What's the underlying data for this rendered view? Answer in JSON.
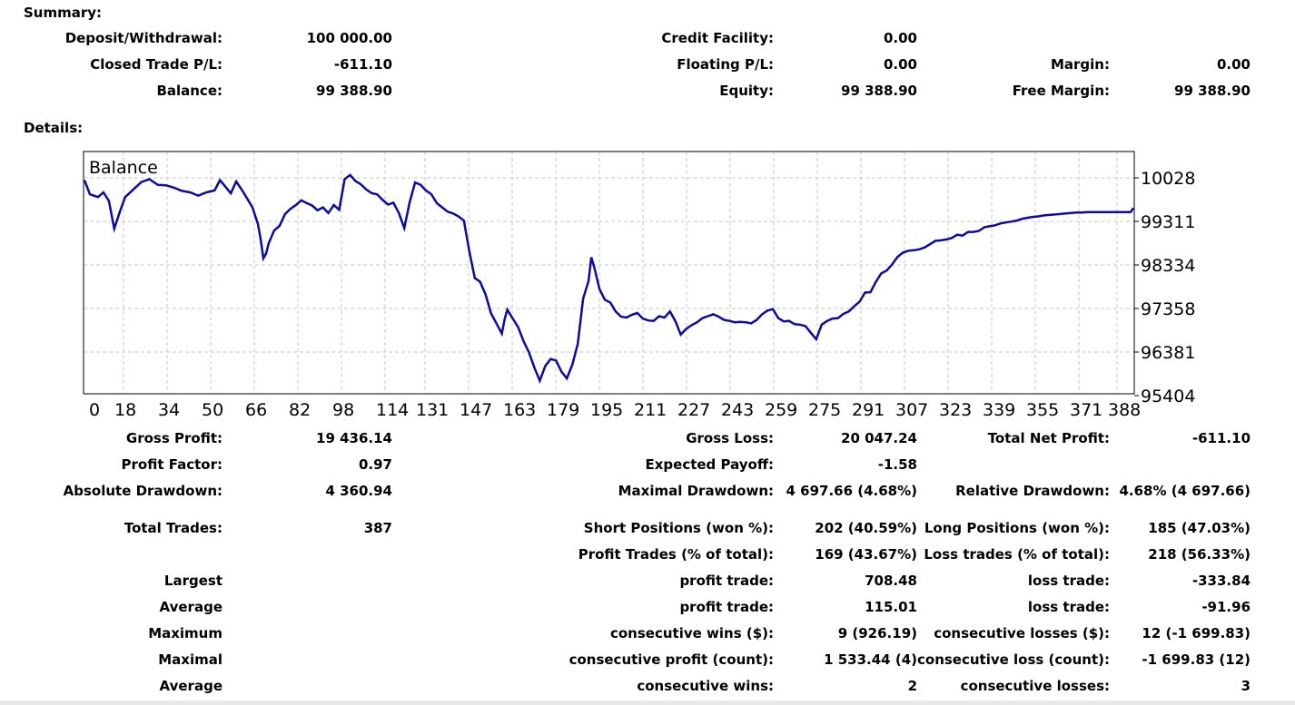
{
  "summary": {
    "heading": "Summary:",
    "deposit_label": "Deposit/Withdrawal:",
    "deposit_value": "100 000.00",
    "credit_label": "Credit Facility:",
    "credit_value": "0.00",
    "closed_pl_label": "Closed Trade P/L:",
    "closed_pl_value": "-611.10",
    "floating_pl_label": "Floating P/L:",
    "floating_pl_value": "0.00",
    "margin_label": "Margin:",
    "margin_value": "0.00",
    "balance_label": "Balance:",
    "balance_value": "99 388.90",
    "equity_label": "Equity:",
    "equity_value": "99 388.90",
    "free_margin_label": "Free Margin:",
    "free_margin_value": "99 388.90"
  },
  "details": {
    "heading": "Details:",
    "gross_profit_label": "Gross Profit:",
    "gross_profit_value": "19 436.14",
    "gross_loss_label": "Gross Loss:",
    "gross_loss_value": "20 047.24",
    "total_net_label": "Total Net Profit:",
    "total_net_value": "-611.10",
    "profit_factor_label": "Profit Factor:",
    "profit_factor_value": "0.97",
    "expected_payoff_label": "Expected Payoff:",
    "expected_payoff_value": "-1.58",
    "abs_dd_label": "Absolute Drawdown:",
    "abs_dd_value": "4 360.94",
    "max_dd_label": "Maximal Drawdown:",
    "max_dd_value": "4 697.66 (4.68%)",
    "rel_dd_label": "Relative Drawdown:",
    "rel_dd_value": "4.68% (4 697.66)",
    "total_trades_label": "Total Trades:",
    "total_trades_value": "387",
    "short_label": "Short Positions (won %):",
    "short_value": "202 (40.59%)",
    "long_label": "Long Positions (won %):",
    "long_value": "185 (47.03%)",
    "profit_trades_label": "Profit Trades (% of total):",
    "profit_trades_value": "169 (43.67%)",
    "loss_trades_label": "Loss trades (% of total):",
    "loss_trades_value": "218 (56.33%)",
    "largest_label": "Largest",
    "largest_profit_label": "profit trade:",
    "largest_profit_value": "708.48",
    "largest_loss_label": "loss trade:",
    "largest_loss_value": "-333.84",
    "average_label": "Average",
    "average_profit_label": "profit trade:",
    "average_profit_value": "115.01",
    "average_loss_label": "loss trade:",
    "average_loss_value": "-91.96",
    "maximum_label": "Maximum",
    "max_cons_wins_label": "consecutive wins ($):",
    "max_cons_wins_value": "9 (926.19)",
    "max_cons_losses_label": "consecutive losses ($):",
    "max_cons_losses_value": "12 (-1 699.83)",
    "maximal_label": "Maximal",
    "maximal_profit_label": "consecutive profit (count):",
    "maximal_profit_value": "1 533.44 (4)",
    "maximal_loss_label": "consecutive loss (count):",
    "maximal_loss_value": "-1 699.83 (12)",
    "average2_label": "Average",
    "avg_cons_wins_label": "consecutive wins:",
    "avg_cons_wins_value": "2",
    "avg_cons_losses_label": "consecutive losses:",
    "avg_cons_losses_value": "3"
  },
  "colors": {
    "line": "#0b0b9e",
    "grid": "#c8c8c8",
    "frame": "#000000"
  },
  "chart_data": {
    "type": "line",
    "title": "Balance",
    "xlabel": "",
    "ylabel": "",
    "x_ticks": [
      "0",
      "18",
      "34",
      "50",
      "66",
      "82",
      "98",
      "114",
      "131",
      "147",
      "163",
      "179",
      "195",
      "211",
      "227",
      "243",
      "259",
      "275",
      "291",
      "307",
      "323",
      "339",
      "355",
      "371",
      "388"
    ],
    "y_ticks": [
      "10028",
      "99311",
      "98334",
      "97358",
      "96381",
      "95404"
    ],
    "grid": true,
    "series": [
      {
        "points": [
          [
            0,
            99980
          ],
          [
            2,
            99680
          ],
          [
            5,
            99620
          ],
          [
            7,
            99720
          ],
          [
            9,
            99540
          ],
          [
            11,
            98950
          ],
          [
            13,
            99300
          ],
          [
            15,
            99620
          ],
          [
            18,
            99780
          ],
          [
            21,
            99940
          ],
          [
            24,
            100000
          ],
          [
            27,
            99880
          ],
          [
            30,
            99870
          ],
          [
            33,
            99820
          ],
          [
            36,
            99750
          ],
          [
            39,
            99720
          ],
          [
            42,
            99650
          ],
          [
            45,
            99720
          ],
          [
            48,
            99760
          ],
          [
            50,
            99980
          ],
          [
            52,
            99840
          ],
          [
            54,
            99700
          ],
          [
            56,
            99950
          ],
          [
            58,
            99780
          ],
          [
            60,
            99590
          ],
          [
            62,
            99400
          ],
          [
            64,
            99050
          ],
          [
            65,
            98730
          ],
          [
            66,
            98320
          ],
          [
            67,
            98420
          ],
          [
            68,
            98640
          ],
          [
            70,
            98910
          ],
          [
            72,
            99010
          ],
          [
            74,
            99260
          ],
          [
            76,
            99370
          ],
          [
            78,
            99450
          ],
          [
            80,
            99550
          ],
          [
            82,
            99490
          ],
          [
            84,
            99440
          ],
          [
            86,
            99340
          ],
          [
            88,
            99400
          ],
          [
            90,
            99280
          ],
          [
            92,
            99450
          ],
          [
            94,
            99350
          ],
          [
            96,
            100000
          ],
          [
            98,
            100090
          ],
          [
            100,
            99960
          ],
          [
            102,
            99890
          ],
          [
            104,
            99780
          ],
          [
            106,
            99700
          ],
          [
            108,
            99680
          ],
          [
            110,
            99560
          ],
          [
            112,
            99460
          ],
          [
            114,
            99500
          ],
          [
            116,
            99280
          ],
          [
            118,
            98960
          ],
          [
            120,
            99510
          ],
          [
            122,
            99930
          ],
          [
            124,
            99880
          ],
          [
            126,
            99760
          ],
          [
            128,
            99680
          ],
          [
            130,
            99490
          ],
          [
            132,
            99400
          ],
          [
            134,
            99310
          ],
          [
            136,
            99270
          ],
          [
            138,
            99210
          ],
          [
            140,
            99120
          ],
          [
            142,
            98470
          ],
          [
            144,
            97900
          ],
          [
            146,
            97820
          ],
          [
            148,
            97550
          ],
          [
            150,
            97150
          ],
          [
            152,
            96940
          ],
          [
            154,
            96720
          ],
          [
            155,
            97020
          ],
          [
            156,
            97230
          ],
          [
            158,
            97040
          ],
          [
            160,
            96860
          ],
          [
            162,
            96560
          ],
          [
            164,
            96320
          ],
          [
            166,
            96000
          ],
          [
            168,
            95720
          ],
          [
            170,
            96030
          ],
          [
            172,
            96180
          ],
          [
            174,
            96150
          ],
          [
            176,
            95910
          ],
          [
            178,
            95770
          ],
          [
            180,
            96060
          ],
          [
            182,
            96500
          ],
          [
            184,
            97460
          ],
          [
            186,
            97840
          ],
          [
            187,
            98340
          ],
          [
            188,
            98150
          ],
          [
            190,
            97670
          ],
          [
            192,
            97440
          ],
          [
            194,
            97380
          ],
          [
            196,
            97190
          ],
          [
            198,
            97080
          ],
          [
            200,
            97060
          ],
          [
            202,
            97120
          ],
          [
            204,
            97160
          ],
          [
            206,
            97040
          ],
          [
            208,
            97000
          ],
          [
            210,
            96990
          ],
          [
            212,
            97090
          ],
          [
            214,
            97060
          ],
          [
            216,
            97190
          ],
          [
            218,
            96990
          ],
          [
            220,
            96700
          ],
          [
            222,
            96820
          ],
          [
            224,
            96900
          ],
          [
            226,
            96960
          ],
          [
            228,
            97050
          ],
          [
            230,
            97090
          ],
          [
            232,
            97130
          ],
          [
            234,
            97080
          ],
          [
            236,
            97010
          ],
          [
            238,
            96990
          ],
          [
            240,
            96960
          ],
          [
            242,
            96970
          ],
          [
            244,
            96960
          ],
          [
            246,
            96940
          ],
          [
            248,
            97010
          ],
          [
            250,
            97130
          ],
          [
            252,
            97210
          ],
          [
            254,
            97240
          ],
          [
            256,
            97050
          ],
          [
            258,
            96980
          ],
          [
            260,
            96990
          ],
          [
            262,
            96920
          ],
          [
            264,
            96910
          ],
          [
            266,
            96880
          ],
          [
            268,
            96740
          ],
          [
            270,
            96600
          ],
          [
            272,
            96910
          ],
          [
            274,
            96990
          ],
          [
            276,
            97040
          ],
          [
            278,
            97050
          ],
          [
            280,
            97140
          ],
          [
            282,
            97190
          ],
          [
            284,
            97300
          ],
          [
            286,
            97400
          ],
          [
            288,
            97590
          ],
          [
            290,
            97600
          ],
          [
            292,
            97820
          ],
          [
            294,
            98000
          ],
          [
            296,
            98060
          ],
          [
            298,
            98190
          ],
          [
            300,
            98350
          ],
          [
            302,
            98440
          ],
          [
            304,
            98480
          ],
          [
            306,
            98490
          ],
          [
            308,
            98510
          ],
          [
            310,
            98550
          ],
          [
            312,
            98620
          ],
          [
            314,
            98690
          ],
          [
            316,
            98700
          ],
          [
            318,
            98720
          ],
          [
            320,
            98750
          ],
          [
            322,
            98820
          ],
          [
            324,
            98800
          ],
          [
            326,
            98880
          ],
          [
            328,
            98880
          ],
          [
            330,
            98900
          ],
          [
            332,
            98980
          ],
          [
            334,
            99000
          ],
          [
            336,
            99020
          ],
          [
            338,
            99060
          ],
          [
            340,
            99080
          ],
          [
            342,
            99100
          ],
          [
            344,
            99120
          ],
          [
            346,
            99160
          ],
          [
            348,
            99180
          ],
          [
            350,
            99200
          ],
          [
            352,
            99210
          ],
          [
            354,
            99230
          ],
          [
            356,
            99240
          ],
          [
            358,
            99250
          ],
          [
            360,
            99260
          ],
          [
            362,
            99270
          ],
          [
            364,
            99280
          ],
          [
            366,
            99290
          ],
          [
            368,
            99290
          ],
          [
            370,
            99300
          ],
          [
            372,
            99300
          ],
          [
            374,
            99300
          ],
          [
            376,
            99300
          ],
          [
            378,
            99300
          ],
          [
            380,
            99300
          ],
          [
            382,
            99300
          ],
          [
            384,
            99300
          ],
          [
            386,
            99300
          ],
          [
            387,
            99389
          ]
        ]
      }
    ]
  }
}
